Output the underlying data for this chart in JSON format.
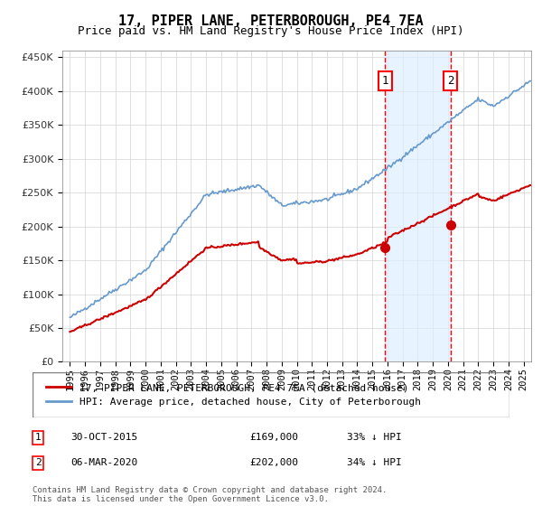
{
  "title": "17, PIPER LANE, PETERBOROUGH, PE4 7EA",
  "subtitle": "Price paid vs. HM Land Registry's House Price Index (HPI)",
  "legend_line1": "17, PIPER LANE, PETERBOROUGH, PE4 7EA (detached house)",
  "legend_line2": "HPI: Average price, detached house, City of Peterborough",
  "footnote": "Contains HM Land Registry data © Crown copyright and database right 2024.\nThis data is licensed under the Open Government Licence v3.0.",
  "sale1_label": "1",
  "sale1_date": "30-OCT-2015",
  "sale1_price": "£169,000",
  "sale1_hpi": "33% ↓ HPI",
  "sale2_label": "2",
  "sale2_date": "06-MAR-2020",
  "sale2_price": "£202,000",
  "sale2_hpi": "34% ↓ HPI",
  "sale1_x": 2015.83,
  "sale2_x": 2020.17,
  "sale1_y": 169000,
  "sale2_y": 202000,
  "hpi_color": "#6699cc",
  "price_color": "#cc0000",
  "marker_color": "#cc0000",
  "shade_color": "#ddeeff",
  "ylim": [
    0,
    460000
  ],
  "xlim": [
    1994.5,
    2025.5
  ],
  "yticks": [
    0,
    50000,
    100000,
    150000,
    200000,
    250000,
    300000,
    350000,
    400000,
    450000
  ],
  "xticks": [
    1995,
    1996,
    1997,
    1998,
    1999,
    2000,
    2001,
    2002,
    2003,
    2004,
    2005,
    2006,
    2007,
    2008,
    2009,
    2010,
    2011,
    2012,
    2013,
    2014,
    2015,
    2016,
    2017,
    2018,
    2019,
    2020,
    2021,
    2022,
    2023,
    2024,
    2025
  ]
}
